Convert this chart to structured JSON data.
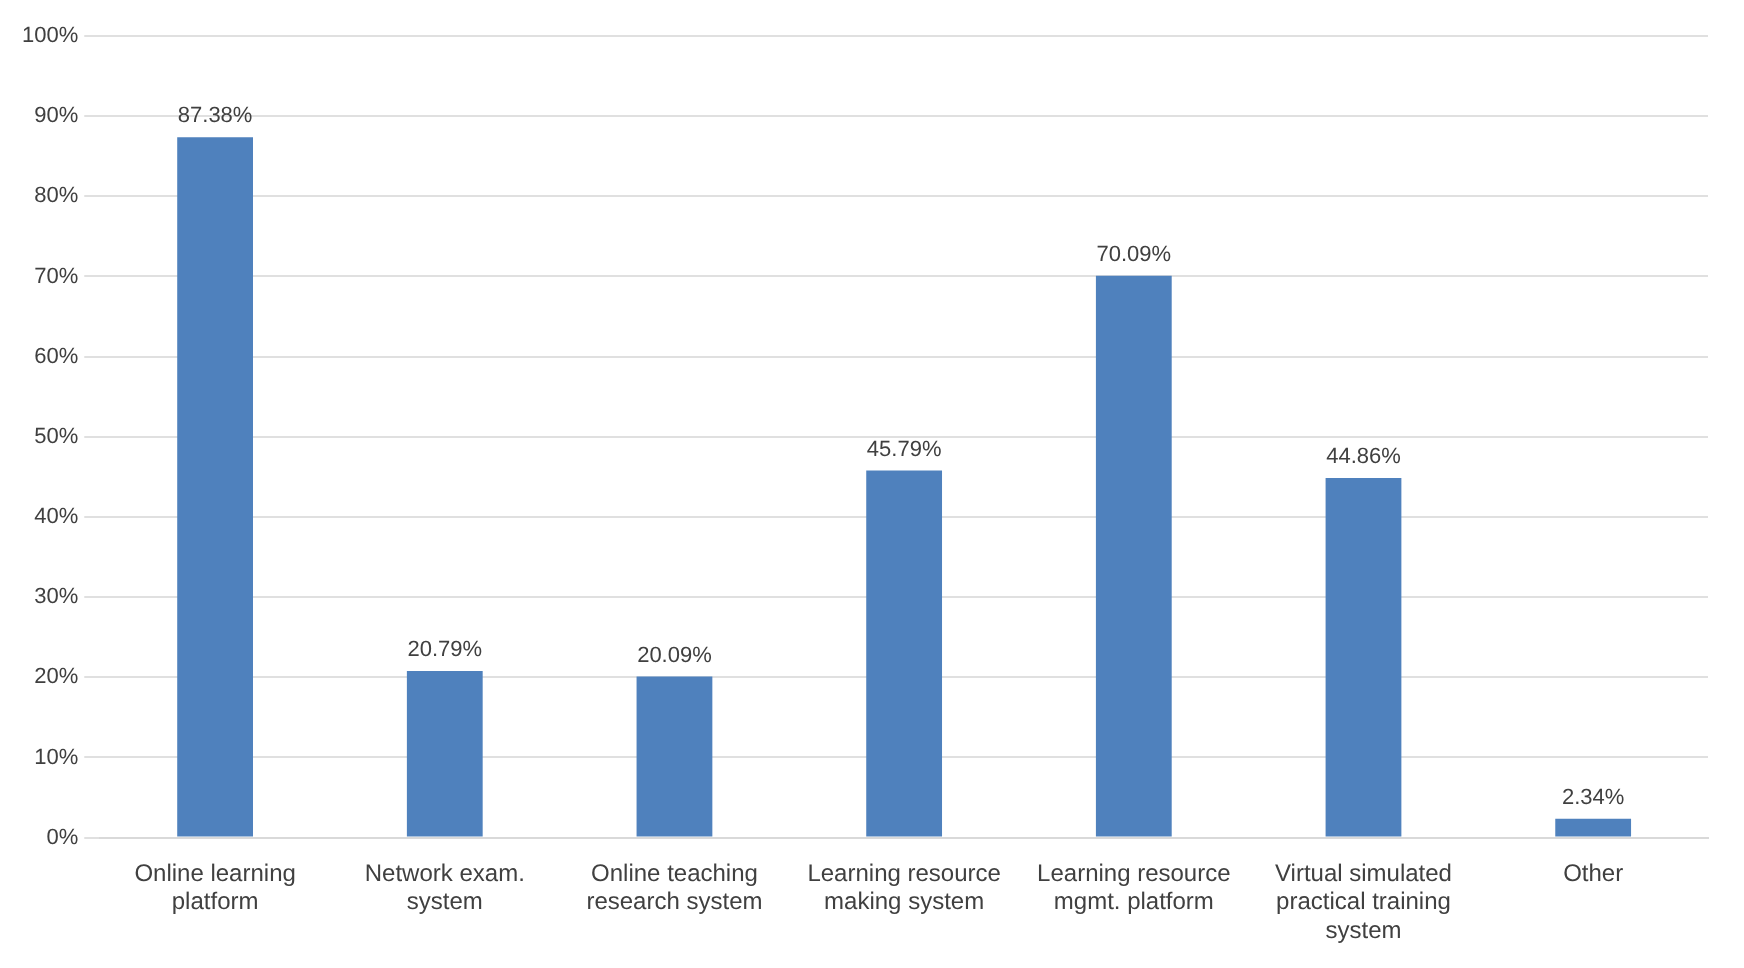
{
  "chart_data": {
    "type": "bar",
    "categories": [
      "Online learning platform",
      "Network exam. system",
      "Online teaching research system",
      "Learning resource making system",
      "Learning resource mgmt. platform",
      "Virtual simulated practical training system",
      "Other"
    ],
    "values": [
      87.38,
      20.79,
      20.09,
      45.79,
      70.09,
      44.86,
      2.34
    ],
    "value_labels": [
      "87.38%",
      "20.79%",
      "20.09%",
      "45.79%",
      "70.09%",
      "44.86%",
      "2.34%"
    ],
    "color": "#4f81bd",
    "ylim": [
      0,
      100
    ],
    "yticks": [
      {
        "value": 0,
        "label": "0%"
      },
      {
        "value": 10,
        "label": "10%"
      },
      {
        "value": 20,
        "label": "20%"
      },
      {
        "value": 30,
        "label": "30%"
      },
      {
        "value": 40,
        "label": "40%"
      },
      {
        "value": 50,
        "label": "50%"
      },
      {
        "value": 60,
        "label": "60%"
      },
      {
        "value": 70,
        "label": "70%"
      },
      {
        "value": 80,
        "label": "80%"
      },
      {
        "value": 90,
        "label": "90%"
      },
      {
        "value": 100,
        "label": "100%"
      }
    ],
    "grid": "y",
    "legend": false
  }
}
